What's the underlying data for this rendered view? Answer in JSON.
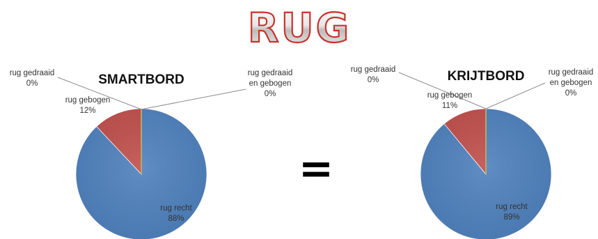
{
  "page_title": "RUG",
  "equals_sign": "=",
  "colors": {
    "rug_recht": "#4f81bd",
    "rug_gebogen": "#c0504d",
    "rug_gedraaid": "#9bbb59",
    "rug_gedraaid_en_gebogen": "#8064a2",
    "title_outline": "#c8322b"
  },
  "chart_data": [
    {
      "type": "pie",
      "title": "SMARTBORD",
      "categories": [
        "rug recht",
        "rug gebogen",
        "rug gedraaid",
        "rug gedraaid en gebogen"
      ],
      "values": [
        88,
        12,
        0,
        0
      ],
      "labels": {
        "rug_recht": [
          "rug recht",
          "88%"
        ],
        "rug_gebogen": [
          "rug gebogen",
          "12%"
        ],
        "rug_gedraaid": [
          "rug gedraaid",
          "0%"
        ],
        "rug_gedraaid_en_gebogen": [
          "rug gedraaid",
          "en gebogen",
          "0%"
        ]
      }
    },
    {
      "type": "pie",
      "title": "KRIJTBORD",
      "categories": [
        "rug recht",
        "rug gebogen",
        "rug gedraaid",
        "rug gedraaid en gebogen"
      ],
      "values": [
        89,
        11,
        0,
        0
      ],
      "labels": {
        "rug_recht": [
          "rug recht",
          "89%"
        ],
        "rug_gebogen": [
          "rug gebogen",
          "11%"
        ],
        "rug_gedraaid": [
          "rug gedraaid",
          "0%"
        ],
        "rug_gedraaid_en_gebogen": [
          "rug gedraaid",
          "en gebogen",
          "0%"
        ]
      }
    }
  ]
}
